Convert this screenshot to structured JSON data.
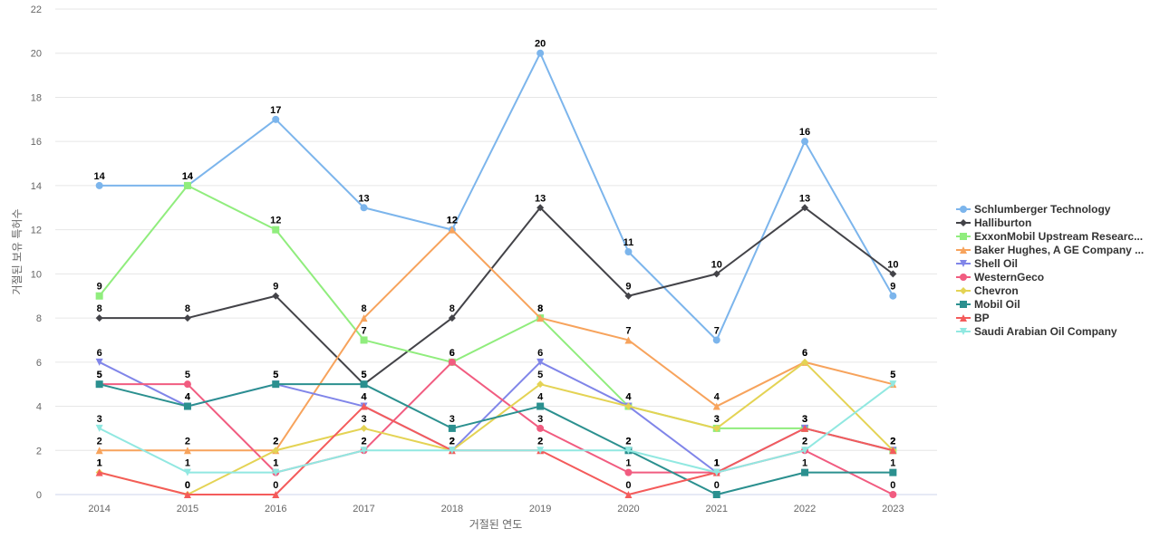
{
  "chart_data": {
    "type": "line",
    "title": "",
    "xlabel": "거절된 연도",
    "ylabel": "거절된 보유 특허수",
    "ylim": [
      0,
      22
    ],
    "yticks": [
      0,
      2,
      4,
      6,
      8,
      10,
      12,
      14,
      16,
      18,
      20,
      22
    ],
    "grid": true,
    "legend_position": "right",
    "categories": [
      "2014",
      "2015",
      "2016",
      "2017",
      "2018",
      "2019",
      "2020",
      "2021",
      "2022",
      "2023"
    ],
    "series": [
      {
        "name": "Schlumberger Technology",
        "color": "#7cb5ec",
        "marker": "circle",
        "values": [
          14,
          14,
          17,
          13,
          12,
          20,
          11,
          7,
          16,
          9
        ]
      },
      {
        "name": "Halliburton",
        "color": "#434348",
        "marker": "diamond",
        "values": [
          8,
          8,
          9,
          5,
          8,
          13,
          9,
          10,
          13,
          10
        ]
      },
      {
        "name": "ExxonMobil Upstream Researc...",
        "color": "#90ed7d",
        "marker": "square",
        "values": [
          9,
          14,
          12,
          7,
          6,
          8,
          4,
          3,
          3,
          2
        ]
      },
      {
        "name": "Baker Hughes, A GE Company ...",
        "color": "#f7a35c",
        "marker": "triangle",
        "values": [
          2,
          2,
          2,
          8,
          12,
          8,
          7,
          4,
          6,
          5
        ]
      },
      {
        "name": "Shell Oil",
        "color": "#8085e9",
        "marker": "triangle-down",
        "values": [
          6,
          4,
          5,
          4,
          2,
          6,
          4,
          1,
          3,
          2
        ]
      },
      {
        "name": "WesternGeco",
        "color": "#f15c80",
        "marker": "circle",
        "values": [
          5,
          5,
          1,
          2,
          6,
          3,
          1,
          1,
          2,
          0
        ]
      },
      {
        "name": "Chevron",
        "color": "#e4d354",
        "marker": "diamond",
        "values": [
          1,
          0,
          2,
          3,
          2,
          5,
          4,
          3,
          6,
          2
        ]
      },
      {
        "name": "Mobil Oil",
        "color": "#2b908f",
        "marker": "square",
        "values": [
          5,
          4,
          5,
          5,
          3,
          4,
          2,
          0,
          1,
          1
        ]
      },
      {
        "name": "BP",
        "color": "#f45b5b",
        "marker": "triangle",
        "values": [
          1,
          0,
          0,
          4,
          2,
          2,
          0,
          1,
          3,
          2
        ]
      },
      {
        "name": "Saudi Arabian Oil Company",
        "color": "#91e8e1",
        "marker": "triangle-down",
        "values": [
          3,
          1,
          1,
          2,
          2,
          2,
          2,
          1,
          2,
          5
        ]
      }
    ]
  }
}
